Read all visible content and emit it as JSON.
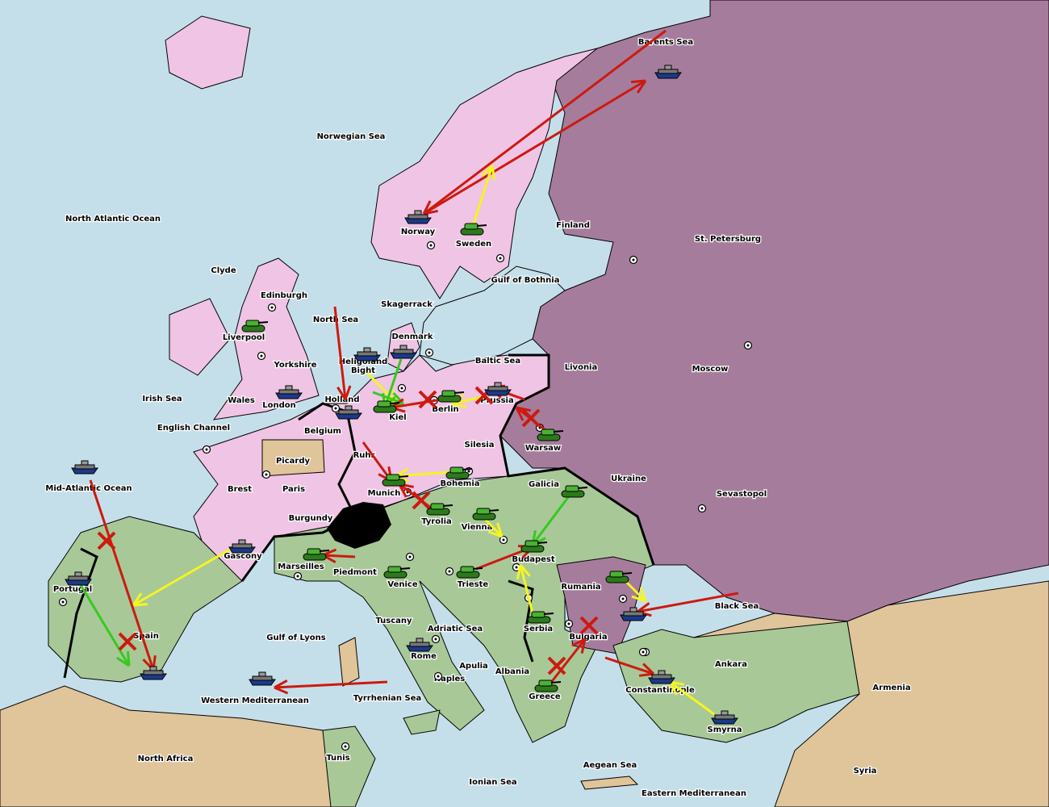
{
  "colors": {
    "sea": "#c5dfea",
    "pink_power": "#f0c4e4",
    "russia": "#a67c9c",
    "green_power": "#a8c898",
    "neutral": "#e0c49a",
    "impassable": "#000000",
    "order_move": "#cc1a10",
    "order_support": "#f5f520",
    "order_convoy": "#38c820"
  },
  "provinces": {
    "barents_sea": "Barents Sea",
    "norwegian_sea": "Norwegian Sea",
    "north_atlantic": "North Atlantic Ocean",
    "norway": "Norway",
    "sweden": "Sweden",
    "finland": "Finland",
    "st_petersburg": "St. Petersburg",
    "gulf_bothnia": "Gulf of Bothnia",
    "clyde": "Clyde",
    "edinburgh": "Edinburgh",
    "skagerrack": "Skagerrack",
    "liverpool": "Liverpool",
    "north_sea": "North Sea",
    "denmark": "Denmark",
    "baltic_sea": "Baltic Sea",
    "livonia": "Livonia",
    "moscow": "Moscow",
    "yorkshire": "Yorkshire",
    "heligoland": "Heligoland Bight",
    "irish_sea": "Irish Sea",
    "wales": "Wales",
    "london": "London",
    "holland": "Holland",
    "kiel": "Kiel",
    "berlin": "Berlin",
    "prussia": "Prussia",
    "warsaw": "Warsaw",
    "english_channel": "English Channel",
    "belgium": "Belgium",
    "silesia": "Silesia",
    "ukraine": "Ukraine",
    "picardy": "Picardy",
    "ruhr": "Ruhr",
    "bohemia": "Bohemia",
    "galicia": "Galicia",
    "mid_atlantic": "Mid-Atlantic Ocean",
    "brest": "Brest",
    "paris": "Paris",
    "munich": "Munich",
    "sevastopol": "Sevastopol",
    "burgundy": "Burgundy",
    "tyrolia": "Tyrolia",
    "vienna": "Vienna",
    "gascony": "Gascony",
    "budapest": "Budapest",
    "marseilles": "Marseilles",
    "piedmont": "Piedmont",
    "venice": "Venice",
    "trieste": "Trieste",
    "rumania": "Rumania",
    "portugal": "Portugal",
    "black_sea": "Black Sea",
    "tuscany": "Tuscany",
    "serbia": "Serbia",
    "bulgaria": "Bulgaria",
    "adriatic": "Adriatic Sea",
    "spain": "Spain",
    "gulf_lyons": "Gulf of Lyons",
    "rome": "Rome",
    "apulia": "Apulia",
    "ankara": "Ankara",
    "armenia": "Armenia",
    "albania": "Albania",
    "naples": "Naples",
    "constantinople": "Constantinople",
    "western_med": "Western Mediterranean",
    "tyrrhenian": "Tyrrhenian Sea",
    "greece": "Greece",
    "smyrna": "Smyrna",
    "north_africa": "North Africa",
    "tunis": "Tunis",
    "aegean": "Aegean Sea",
    "syria": "Syria",
    "ionian": "Ionian Sea",
    "eastern_med": "Eastern Mediterranean"
  },
  "units": [
    {
      "type": "fleet",
      "province": "barents_sea",
      "power": "russia"
    },
    {
      "type": "fleet",
      "province": "norway",
      "power": "pink_power"
    },
    {
      "type": "army",
      "province": "sweden",
      "power": "green_power"
    },
    {
      "type": "army",
      "province": "liverpool",
      "power": "green_power"
    },
    {
      "type": "fleet",
      "province": "london",
      "power": "pink_power"
    },
    {
      "type": "fleet",
      "province": "heligoland",
      "power": "pink_power"
    },
    {
      "type": "fleet",
      "province": "denmark",
      "power": "pink_power"
    },
    {
      "type": "fleet",
      "province": "holland",
      "power": "pink_power"
    },
    {
      "type": "army",
      "province": "kiel",
      "power": "green_power"
    },
    {
      "type": "army",
      "province": "berlin",
      "power": "green_power"
    },
    {
      "type": "fleet",
      "province": "prussia",
      "power": "pink_power"
    },
    {
      "type": "army",
      "province": "warsaw",
      "power": "green_power"
    },
    {
      "type": "army",
      "province": "bohemia",
      "power": "green_power"
    },
    {
      "type": "army",
      "province": "munich",
      "power": "green_power"
    },
    {
      "type": "army",
      "province": "tyrolia",
      "power": "green_power"
    },
    {
      "type": "army",
      "province": "vienna",
      "power": "green_power"
    },
    {
      "type": "army",
      "province": "galicia",
      "power": "green_power"
    },
    {
      "type": "army",
      "province": "budapest",
      "power": "green_power"
    },
    {
      "type": "fleet",
      "province": "mid_atlantic",
      "power": "pink_power"
    },
    {
      "type": "fleet",
      "province": "gascony",
      "power": "pink_power"
    },
    {
      "type": "army",
      "province": "piedmont",
      "power": "green_power"
    },
    {
      "type": "army",
      "province": "venice",
      "power": "green_power"
    },
    {
      "type": "army",
      "province": "trieste",
      "power": "green_power"
    },
    {
      "type": "army",
      "province": "rumania",
      "power": "green_power"
    },
    {
      "type": "fleet",
      "province": "portugal",
      "power": "pink_power"
    },
    {
      "type": "fleet",
      "province": "spain",
      "power": "pink_power"
    },
    {
      "type": "fleet",
      "province": "black_sea",
      "power": "green_power"
    },
    {
      "type": "army",
      "province": "serbia",
      "power": "green_power"
    },
    {
      "type": "fleet",
      "province": "rome",
      "power": "green_power"
    },
    {
      "type": "fleet",
      "province": "constantinople",
      "power": "green_power"
    },
    {
      "type": "fleet",
      "province": "western_med",
      "power": "green_power"
    },
    {
      "type": "army",
      "province": "greece",
      "power": "green_power"
    },
    {
      "type": "fleet",
      "province": "smyrna",
      "power": "green_power"
    }
  ]
}
